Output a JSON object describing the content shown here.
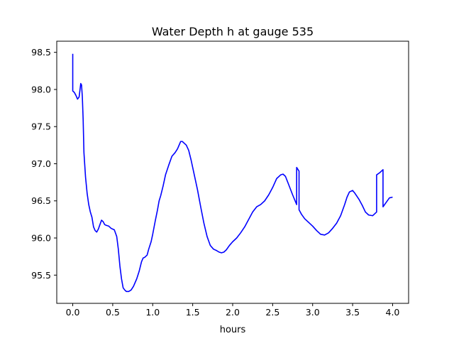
{
  "chart_data": {
    "type": "line",
    "title": "Water Depth h at gauge 535",
    "xlabel": "hours",
    "ylabel": "",
    "xlim": [
      -0.2,
      4.2
    ],
    "ylim": [
      95.12,
      98.65
    ],
    "xticks": [
      0.0,
      0.5,
      1.0,
      1.5,
      2.0,
      2.5,
      3.0,
      3.5,
      4.0
    ],
    "xtick_labels": [
      "0.0",
      "0.5",
      "1.0",
      "1.5",
      "2.0",
      "2.5",
      "3.0",
      "3.5",
      "4.0"
    ],
    "yticks": [
      95.5,
      96.0,
      96.5,
      97.0,
      97.5,
      98.0,
      98.5
    ],
    "ytick_labels": [
      "95.5",
      "96.0",
      "96.5",
      "97.0",
      "97.5",
      "98.0",
      "98.5"
    ],
    "grid": false,
    "series": [
      {
        "color": "#0000ff",
        "points": [
          [
            0.0,
            98.48
          ],
          [
            0.0,
            97.98
          ],
          [
            0.02,
            97.96
          ],
          [
            0.04,
            97.92
          ],
          [
            0.06,
            97.87
          ],
          [
            0.08,
            97.9
          ],
          [
            0.1,
            98.08
          ],
          [
            0.11,
            98.06
          ],
          [
            0.12,
            97.9
          ],
          [
            0.13,
            97.6
          ],
          [
            0.14,
            97.15
          ],
          [
            0.16,
            96.82
          ],
          [
            0.18,
            96.6
          ],
          [
            0.2,
            96.45
          ],
          [
            0.22,
            96.35
          ],
          [
            0.24,
            96.28
          ],
          [
            0.26,
            96.15
          ],
          [
            0.28,
            96.1
          ],
          [
            0.3,
            96.08
          ],
          [
            0.32,
            96.12
          ],
          [
            0.34,
            96.18
          ],
          [
            0.36,
            96.24
          ],
          [
            0.38,
            96.22
          ],
          [
            0.4,
            96.18
          ],
          [
            0.42,
            96.17
          ],
          [
            0.45,
            96.16
          ],
          [
            0.48,
            96.13
          ],
          [
            0.5,
            96.12
          ],
          [
            0.52,
            96.11
          ],
          [
            0.55,
            96.02
          ],
          [
            0.57,
            95.85
          ],
          [
            0.59,
            95.62
          ],
          [
            0.61,
            95.45
          ],
          [
            0.63,
            95.33
          ],
          [
            0.65,
            95.3
          ],
          [
            0.67,
            95.28
          ],
          [
            0.7,
            95.28
          ],
          [
            0.73,
            95.3
          ],
          [
            0.76,
            95.35
          ],
          [
            0.8,
            95.45
          ],
          [
            0.83,
            95.55
          ],
          [
            0.86,
            95.68
          ],
          [
            0.88,
            95.73
          ],
          [
            0.9,
            95.74
          ],
          [
            0.93,
            95.77
          ],
          [
            0.95,
            95.85
          ],
          [
            0.98,
            95.95
          ],
          [
            1.0,
            96.05
          ],
          [
            1.03,
            96.22
          ],
          [
            1.06,
            96.38
          ],
          [
            1.08,
            96.5
          ],
          [
            1.1,
            96.57
          ],
          [
            1.13,
            96.7
          ],
          [
            1.16,
            96.85
          ],
          [
            1.2,
            96.98
          ],
          [
            1.24,
            97.1
          ],
          [
            1.28,
            97.15
          ],
          [
            1.31,
            97.2
          ],
          [
            1.33,
            97.25
          ],
          [
            1.35,
            97.3
          ],
          [
            1.37,
            97.3
          ],
          [
            1.39,
            97.28
          ],
          [
            1.42,
            97.25
          ],
          [
            1.45,
            97.18
          ],
          [
            1.48,
            97.05
          ],
          [
            1.52,
            96.85
          ],
          [
            1.56,
            96.65
          ],
          [
            1.6,
            96.42
          ],
          [
            1.64,
            96.2
          ],
          [
            1.68,
            96.02
          ],
          [
            1.72,
            95.9
          ],
          [
            1.76,
            95.85
          ],
          [
            1.8,
            95.83
          ],
          [
            1.83,
            95.81
          ],
          [
            1.86,
            95.8
          ],
          [
            1.89,
            95.81
          ],
          [
            1.92,
            95.84
          ],
          [
            1.96,
            95.9
          ],
          [
            2.0,
            95.95
          ],
          [
            2.05,
            96.0
          ],
          [
            2.1,
            96.07
          ],
          [
            2.15,
            96.15
          ],
          [
            2.2,
            96.25
          ],
          [
            2.25,
            96.35
          ],
          [
            2.3,
            96.42
          ],
          [
            2.35,
            96.45
          ],
          [
            2.4,
            96.5
          ],
          [
            2.45,
            96.58
          ],
          [
            2.5,
            96.68
          ],
          [
            2.55,
            96.8
          ],
          [
            2.6,
            96.85
          ],
          [
            2.63,
            96.86
          ],
          [
            2.66,
            96.83
          ],
          [
            2.7,
            96.72
          ],
          [
            2.75,
            96.58
          ],
          [
            2.8,
            96.45
          ],
          [
            2.8,
            96.95
          ],
          [
            2.83,
            96.9
          ],
          [
            2.83,
            96.38
          ],
          [
            2.86,
            96.32
          ],
          [
            2.9,
            96.26
          ],
          [
            2.95,
            96.21
          ],
          [
            3.0,
            96.16
          ],
          [
            3.05,
            96.1
          ],
          [
            3.1,
            96.05
          ],
          [
            3.15,
            96.04
          ],
          [
            3.2,
            96.07
          ],
          [
            3.25,
            96.13
          ],
          [
            3.3,
            96.2
          ],
          [
            3.35,
            96.3
          ],
          [
            3.4,
            96.45
          ],
          [
            3.43,
            96.55
          ],
          [
            3.46,
            96.62
          ],
          [
            3.5,
            96.64
          ],
          [
            3.53,
            96.6
          ],
          [
            3.58,
            96.52
          ],
          [
            3.62,
            96.44
          ],
          [
            3.66,
            96.35
          ],
          [
            3.7,
            96.31
          ],
          [
            3.75,
            96.3
          ],
          [
            3.8,
            96.35
          ],
          [
            3.8,
            96.85
          ],
          [
            3.84,
            96.88
          ],
          [
            3.88,
            96.92
          ],
          [
            3.88,
            96.42
          ],
          [
            3.92,
            96.48
          ],
          [
            3.96,
            96.54
          ],
          [
            4.0,
            96.55
          ]
        ]
      }
    ]
  }
}
